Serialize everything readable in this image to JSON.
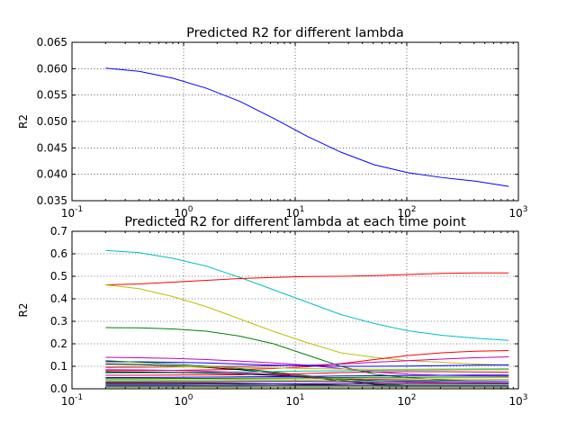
{
  "chart_data": [
    {
      "type": "line",
      "title": "Predicted R2 for different lambda",
      "xlabel": "",
      "ylabel": "R2",
      "xscale": "log",
      "xlim": [
        0.1,
        1000
      ],
      "ylim": [
        0.035,
        0.065
      ],
      "grid": true,
      "xticks": [
        0.1,
        1,
        10,
        100,
        1000
      ],
      "xtick_labels": [
        {
          "b": "10",
          "e": "-1"
        },
        {
          "b": "10",
          "e": "0"
        },
        {
          "b": "10",
          "e": "1"
        },
        {
          "b": "10",
          "e": "2"
        },
        {
          "b": "10",
          "e": "3"
        }
      ],
      "yticks": [
        0.035,
        0.04,
        0.045,
        0.05,
        0.055,
        0.06,
        0.065
      ],
      "ytick_labels": [
        "0.035",
        "0.040",
        "0.045",
        "0.050",
        "0.055",
        "0.060",
        "0.065"
      ],
      "x": [
        0.2,
        0.4,
        0.8,
        1.6,
        3.2,
        6.4,
        12.8,
        25.6,
        51.2,
        102.4,
        204.8,
        409.6,
        819.2
      ],
      "series": [
        {
          "color": "#0000ff",
          "values": [
            0.0601,
            0.0595,
            0.0582,
            0.0563,
            0.0538,
            0.0506,
            0.0472,
            0.0442,
            0.0418,
            0.0403,
            0.0394,
            0.0387,
            0.0377
          ]
        }
      ]
    },
    {
      "type": "line",
      "title": "Predicted R2 for different lambda at each time point",
      "xlabel": "",
      "ylabel": "R2",
      "xscale": "log",
      "xlim": [
        0.1,
        1000
      ],
      "ylim": [
        0.0,
        0.7
      ],
      "grid": true,
      "xticks": [
        0.1,
        1,
        10,
        100,
        1000
      ],
      "xtick_labels": [
        {
          "b": "10",
          "e": "-1"
        },
        {
          "b": "10",
          "e": "0"
        },
        {
          "b": "10",
          "e": "1"
        },
        {
          "b": "10",
          "e": "2"
        },
        {
          "b": "10",
          "e": "3"
        }
      ],
      "yticks": [
        0.0,
        0.1,
        0.2,
        0.3,
        0.4,
        0.5,
        0.6,
        0.7
      ],
      "ytick_labels": [
        "0.0",
        "0.1",
        "0.2",
        "0.3",
        "0.4",
        "0.5",
        "0.6",
        "0.7"
      ],
      "x": [
        0.2,
        0.4,
        0.8,
        1.6,
        3.2,
        6.4,
        12.8,
        25.6,
        51.2,
        102.4,
        204.8,
        409.6,
        819.2
      ],
      "series": [
        {
          "color": "#00bfbf",
          "values": [
            0.615,
            0.605,
            0.58,
            0.545,
            0.495,
            0.44,
            0.385,
            0.33,
            0.29,
            0.258,
            0.238,
            0.225,
            0.215
          ]
        },
        {
          "color": "#ff0000",
          "values": [
            0.462,
            0.466,
            0.474,
            0.482,
            0.49,
            0.495,
            0.499,
            0.5,
            0.503,
            0.508,
            0.513,
            0.515,
            0.515
          ]
        },
        {
          "color": "#bfbf00",
          "values": [
            0.462,
            0.445,
            0.41,
            0.365,
            0.31,
            0.255,
            0.205,
            0.16,
            0.14,
            0.125,
            0.118,
            0.11,
            0.105
          ]
        },
        {
          "color": "#008000",
          "values": [
            0.272,
            0.271,
            0.266,
            0.256,
            0.234,
            0.2,
            0.15,
            0.1,
            0.065,
            0.05,
            0.04,
            0.035,
            0.032
          ]
        },
        {
          "color": "#bf00bf",
          "values": [
            0.14,
            0.138,
            0.135,
            0.13,
            0.123,
            0.115,
            0.105,
            0.09,
            0.075,
            0.065,
            0.06,
            0.058,
            0.057
          ]
        },
        {
          "color": "#ff0000",
          "values": [
            0.08,
            0.081,
            0.082,
            0.084,
            0.086,
            0.09,
            0.098,
            0.112,
            0.13,
            0.148,
            0.16,
            0.167,
            0.17
          ]
        },
        {
          "color": "#bf00bf",
          "values": [
            0.095,
            0.096,
            0.097,
            0.099,
            0.1,
            0.102,
            0.105,
            0.11,
            0.118,
            0.125,
            0.132,
            0.138,
            0.142
          ]
        },
        {
          "color": "#0000ff",
          "values": [
            0.12,
            0.12,
            0.118,
            0.115,
            0.11,
            0.105,
            0.102,
            0.1,
            0.1,
            0.101,
            0.103,
            0.105,
            0.106
          ]
        },
        {
          "color": "#000000",
          "values": [
            0.11,
            0.108,
            0.102,
            0.095,
            0.085,
            0.07,
            0.052,
            0.035,
            0.02,
            0.012,
            0.008,
            0.006,
            0.005
          ]
        },
        {
          "color": "#008000",
          "values": [
            0.125,
            0.118,
            0.11,
            0.1,
            0.09,
            0.075,
            0.058,
            0.04,
            0.025,
            0.015,
            0.01,
            0.008,
            0.007
          ]
        },
        {
          "color": "#bfbf00",
          "values": [
            0.1,
            0.099,
            0.098,
            0.097,
            0.095,
            0.093,
            0.09,
            0.088,
            0.087,
            0.087,
            0.088,
            0.089,
            0.09
          ]
        },
        {
          "color": "#00bfbf",
          "values": [
            0.07,
            0.071,
            0.072,
            0.073,
            0.075,
            0.077,
            0.079,
            0.08,
            0.082,
            0.083,
            0.084,
            0.085,
            0.085
          ]
        },
        {
          "color": "#ff0000",
          "values": [
            0.06,
            0.06,
            0.061,
            0.062,
            0.063,
            0.065,
            0.068,
            0.072,
            0.075,
            0.076,
            0.076,
            0.075,
            0.074
          ]
        },
        {
          "color": "#000000",
          "values": [
            0.075,
            0.074,
            0.073,
            0.07,
            0.066,
            0.06,
            0.052,
            0.044,
            0.037,
            0.032,
            0.029,
            0.027,
            0.026
          ]
        },
        {
          "color": "#0000ff",
          "values": [
            0.05,
            0.05,
            0.051,
            0.052,
            0.053,
            0.054,
            0.055,
            0.057,
            0.058,
            0.059,
            0.06,
            0.061,
            0.061
          ]
        },
        {
          "color": "#bf00bf",
          "values": [
            0.085,
            0.084,
            0.082,
            0.078,
            0.072,
            0.064,
            0.055,
            0.047,
            0.042,
            0.039,
            0.037,
            0.036,
            0.035
          ]
        },
        {
          "color": "#008000",
          "values": [
            0.045,
            0.045,
            0.046,
            0.046,
            0.047,
            0.048,
            0.049,
            0.05,
            0.051,
            0.051,
            0.052,
            0.052,
            0.052
          ]
        },
        {
          "color": "#bfbf00",
          "values": [
            0.04,
            0.04,
            0.04,
            0.041,
            0.042,
            0.043,
            0.044,
            0.045,
            0.045,
            0.045,
            0.044,
            0.043,
            0.042
          ]
        },
        {
          "color": "#00bfbf",
          "values": [
            0.035,
            0.035,
            0.035,
            0.035,
            0.036,
            0.036,
            0.036,
            0.036,
            0.035,
            0.035,
            0.034,
            0.033,
            0.032
          ]
        },
        {
          "color": "#ff0000",
          "values": [
            0.03,
            0.03,
            0.031,
            0.031,
            0.032,
            0.032,
            0.032,
            0.031,
            0.03,
            0.029,
            0.028,
            0.027,
            0.026
          ]
        },
        {
          "color": "#000000",
          "values": [
            0.025,
            0.025,
            0.025,
            0.025,
            0.024,
            0.022,
            0.02,
            0.017,
            0.014,
            0.011,
            0.009,
            0.008,
            0.007
          ]
        },
        {
          "color": "#0000ff",
          "values": [
            0.02,
            0.02,
            0.02,
            0.021,
            0.021,
            0.022,
            0.022,
            0.023,
            0.023,
            0.023,
            0.023,
            0.023,
            0.023
          ]
        },
        {
          "color": "#008000",
          "values": [
            0.015,
            0.015,
            0.015,
            0.015,
            0.016,
            0.016,
            0.016,
            0.016,
            0.016,
            0.016,
            0.016,
            0.016,
            0.016
          ]
        },
        {
          "color": "#bf00bf",
          "values": [
            0.012,
            0.012,
            0.012,
            0.012,
            0.012,
            0.013,
            0.013,
            0.013,
            0.013,
            0.012,
            0.012,
            0.012,
            0.012
          ]
        },
        {
          "color": "#00bfbf",
          "values": [
            0.008,
            0.008,
            0.008,
            0.008,
            0.008,
            0.008,
            0.008,
            0.008,
            0.008,
            0.008,
            0.008,
            0.008,
            0.008
          ]
        },
        {
          "color": "#bfbf00",
          "values": [
            0.005,
            0.005,
            0.005,
            0.005,
            0.005,
            0.005,
            0.005,
            0.005,
            0.005,
            0.005,
            0.005,
            0.005,
            0.005
          ]
        }
      ]
    }
  ]
}
